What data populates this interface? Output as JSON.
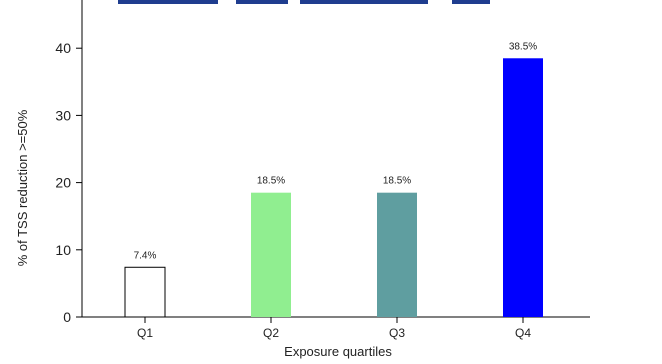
{
  "chart_data": {
    "type": "bar",
    "title": "",
    "xlabel": "Exposure quartiles",
    "ylabel": "% of TSS reduction >=50%",
    "categories": [
      "Q1",
      "Q2",
      "Q3",
      "Q4"
    ],
    "values": [
      7.4,
      18.5,
      18.5,
      38.5
    ],
    "value_labels": [
      "7.4%",
      "18.5%",
      "18.5%",
      "38.5%"
    ],
    "bar_colors": [
      "#ffffff",
      "#90ee90",
      "#5f9ea0",
      "#0000ff"
    ],
    "bar_stroke": "#000000",
    "yticks": [
      0,
      10,
      20,
      30,
      40
    ],
    "ylim": [
      0,
      46
    ],
    "grid": false,
    "legend": "none",
    "title_color": "#1f3d8f"
  }
}
